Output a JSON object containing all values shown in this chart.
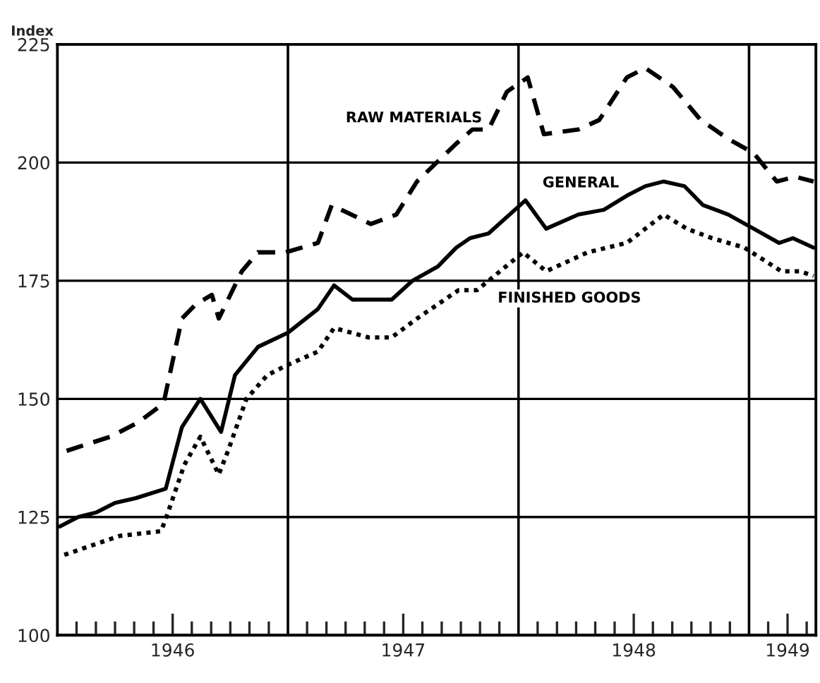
{
  "chart_data": {
    "type": "line",
    "ylabel": "Index",
    "xlim": [
      1946.0,
      1949.29
    ],
    "ylim": [
      100,
      225
    ],
    "yticks": [
      100,
      125,
      150,
      175,
      200,
      225
    ],
    "xticks": [
      {
        "value": 1946.5,
        "label": "1946"
      },
      {
        "value": 1947.5,
        "label": "1947"
      },
      {
        "value": 1948.5,
        "label": "1948"
      },
      {
        "value": 1949.167,
        "label": "1949"
      },
      {
        "value": 1946.083,
        "label": null
      },
      {
        "value": 1946.167,
        "label": null
      },
      {
        "value": 1946.25,
        "label": null
      },
      {
        "value": 1946.333,
        "label": null
      },
      {
        "value": 1946.417,
        "label": null
      },
      {
        "value": 1946.583,
        "label": null
      },
      {
        "value": 1946.667,
        "label": null
      },
      {
        "value": 1946.75,
        "label": null
      },
      {
        "value": 1946.833,
        "label": null
      },
      {
        "value": 1946.917,
        "label": null
      },
      {
        "value": 1947.083,
        "label": null
      },
      {
        "value": 1947.167,
        "label": null
      },
      {
        "value": 1947.25,
        "label": null
      },
      {
        "value": 1947.333,
        "label": null
      },
      {
        "value": 1947.417,
        "label": null
      },
      {
        "value": 1947.583,
        "label": null
      },
      {
        "value": 1947.667,
        "label": null
      },
      {
        "value": 1947.75,
        "label": null
      },
      {
        "value": 1947.833,
        "label": null
      },
      {
        "value": 1947.917,
        "label": null
      },
      {
        "value": 1948.083,
        "label": null
      },
      {
        "value": 1948.167,
        "label": null
      },
      {
        "value": 1948.25,
        "label": null
      },
      {
        "value": 1948.333,
        "label": null
      },
      {
        "value": 1948.417,
        "label": null
      },
      {
        "value": 1948.583,
        "label": null
      },
      {
        "value": 1948.667,
        "label": null
      },
      {
        "value": 1948.75,
        "label": null
      },
      {
        "value": 1948.833,
        "label": null
      },
      {
        "value": 1948.917,
        "label": null
      },
      {
        "value": 1949.083,
        "label": null
      },
      {
        "value": 1949.25,
        "label": null
      }
    ],
    "grid": "y",
    "ref_lines": [
      {
        "axis": "x",
        "value": 1947.0,
        "color": "#000000"
      },
      {
        "axis": "x",
        "value": 1948.0,
        "color": "#000000"
      },
      {
        "axis": "x",
        "value": 1949.0,
        "color": "#000000"
      }
    ],
    "series": [
      {
        "name": "RAW MATERIALS",
        "color": "#000000",
        "line_style": "dashed",
        "x": [
          1946.04,
          1946.23,
          1946.35,
          1946.46,
          1946.54,
          1946.6,
          1946.67,
          1946.7,
          1946.8,
          1946.87,
          1946.99,
          1947.13,
          1947.19,
          1947.36,
          1947.47,
          1947.56,
          1947.73,
          1947.8,
          1947.87,
          1947.95,
          1948.04,
          1948.11,
          1948.26,
          1948.35,
          1948.47,
          1948.55,
          1948.67,
          1948.79,
          1948.91,
          1949.02,
          1949.12,
          1949.2,
          1949.28
        ],
        "values": [
          139,
          142,
          145,
          149,
          167,
          170,
          172,
          167,
          177,
          181,
          181,
          183,
          191,
          187,
          189,
          196,
          204,
          207,
          207,
          215,
          218,
          206,
          207,
          209,
          218,
          220,
          216,
          209,
          205,
          202,
          196,
          197,
          196
        ]
      },
      {
        "name": "GENERAL",
        "color": "#000000",
        "line_style": "solid",
        "x": [
          1946.01,
          1946.09,
          1946.17,
          1946.25,
          1946.34,
          1946.47,
          1946.54,
          1946.62,
          1946.71,
          1946.77,
          1946.87,
          1947.0,
          1947.13,
          1947.2,
          1947.28,
          1947.45,
          1947.54,
          1947.65,
          1947.73,
          1947.79,
          1947.87,
          1948.03,
          1948.12,
          1948.26,
          1948.37,
          1948.47,
          1948.55,
          1948.63,
          1948.72,
          1948.8,
          1948.91,
          1949.02,
          1949.13,
          1949.19,
          1949.28
        ],
        "values": [
          123,
          125,
          126,
          128,
          129,
          131,
          144,
          150,
          143,
          155,
          161,
          164,
          169,
          174,
          171,
          171,
          175,
          178,
          182,
          184,
          185,
          192,
          186,
          189,
          190,
          193,
          195,
          196,
          195,
          191,
          189,
          186,
          183,
          184,
          182
        ]
      },
      {
        "name": "FINISHED GOODS",
        "color": "#000000",
        "line_style": "dotted",
        "x": [
          1946.03,
          1946.15,
          1946.27,
          1946.45,
          1946.48,
          1946.55,
          1946.62,
          1946.7,
          1946.74,
          1946.82,
          1946.91,
          1946.99,
          1947.13,
          1947.2,
          1947.35,
          1947.45,
          1947.56,
          1947.74,
          1947.82,
          1947.92,
          1948.02,
          1948.12,
          1948.3,
          1948.47,
          1948.63,
          1948.73,
          1948.84,
          1948.98,
          1949.14,
          1949.22,
          1949.28
        ],
        "values": [
          117,
          119,
          121,
          122,
          126,
          136,
          142,
          134,
          139,
          150,
          155,
          157,
          160,
          165,
          163,
          163,
          167,
          173,
          173,
          177,
          181,
          177,
          181,
          183,
          189,
          186,
          184,
          182,
          177,
          177,
          176
        ]
      }
    ]
  }
}
